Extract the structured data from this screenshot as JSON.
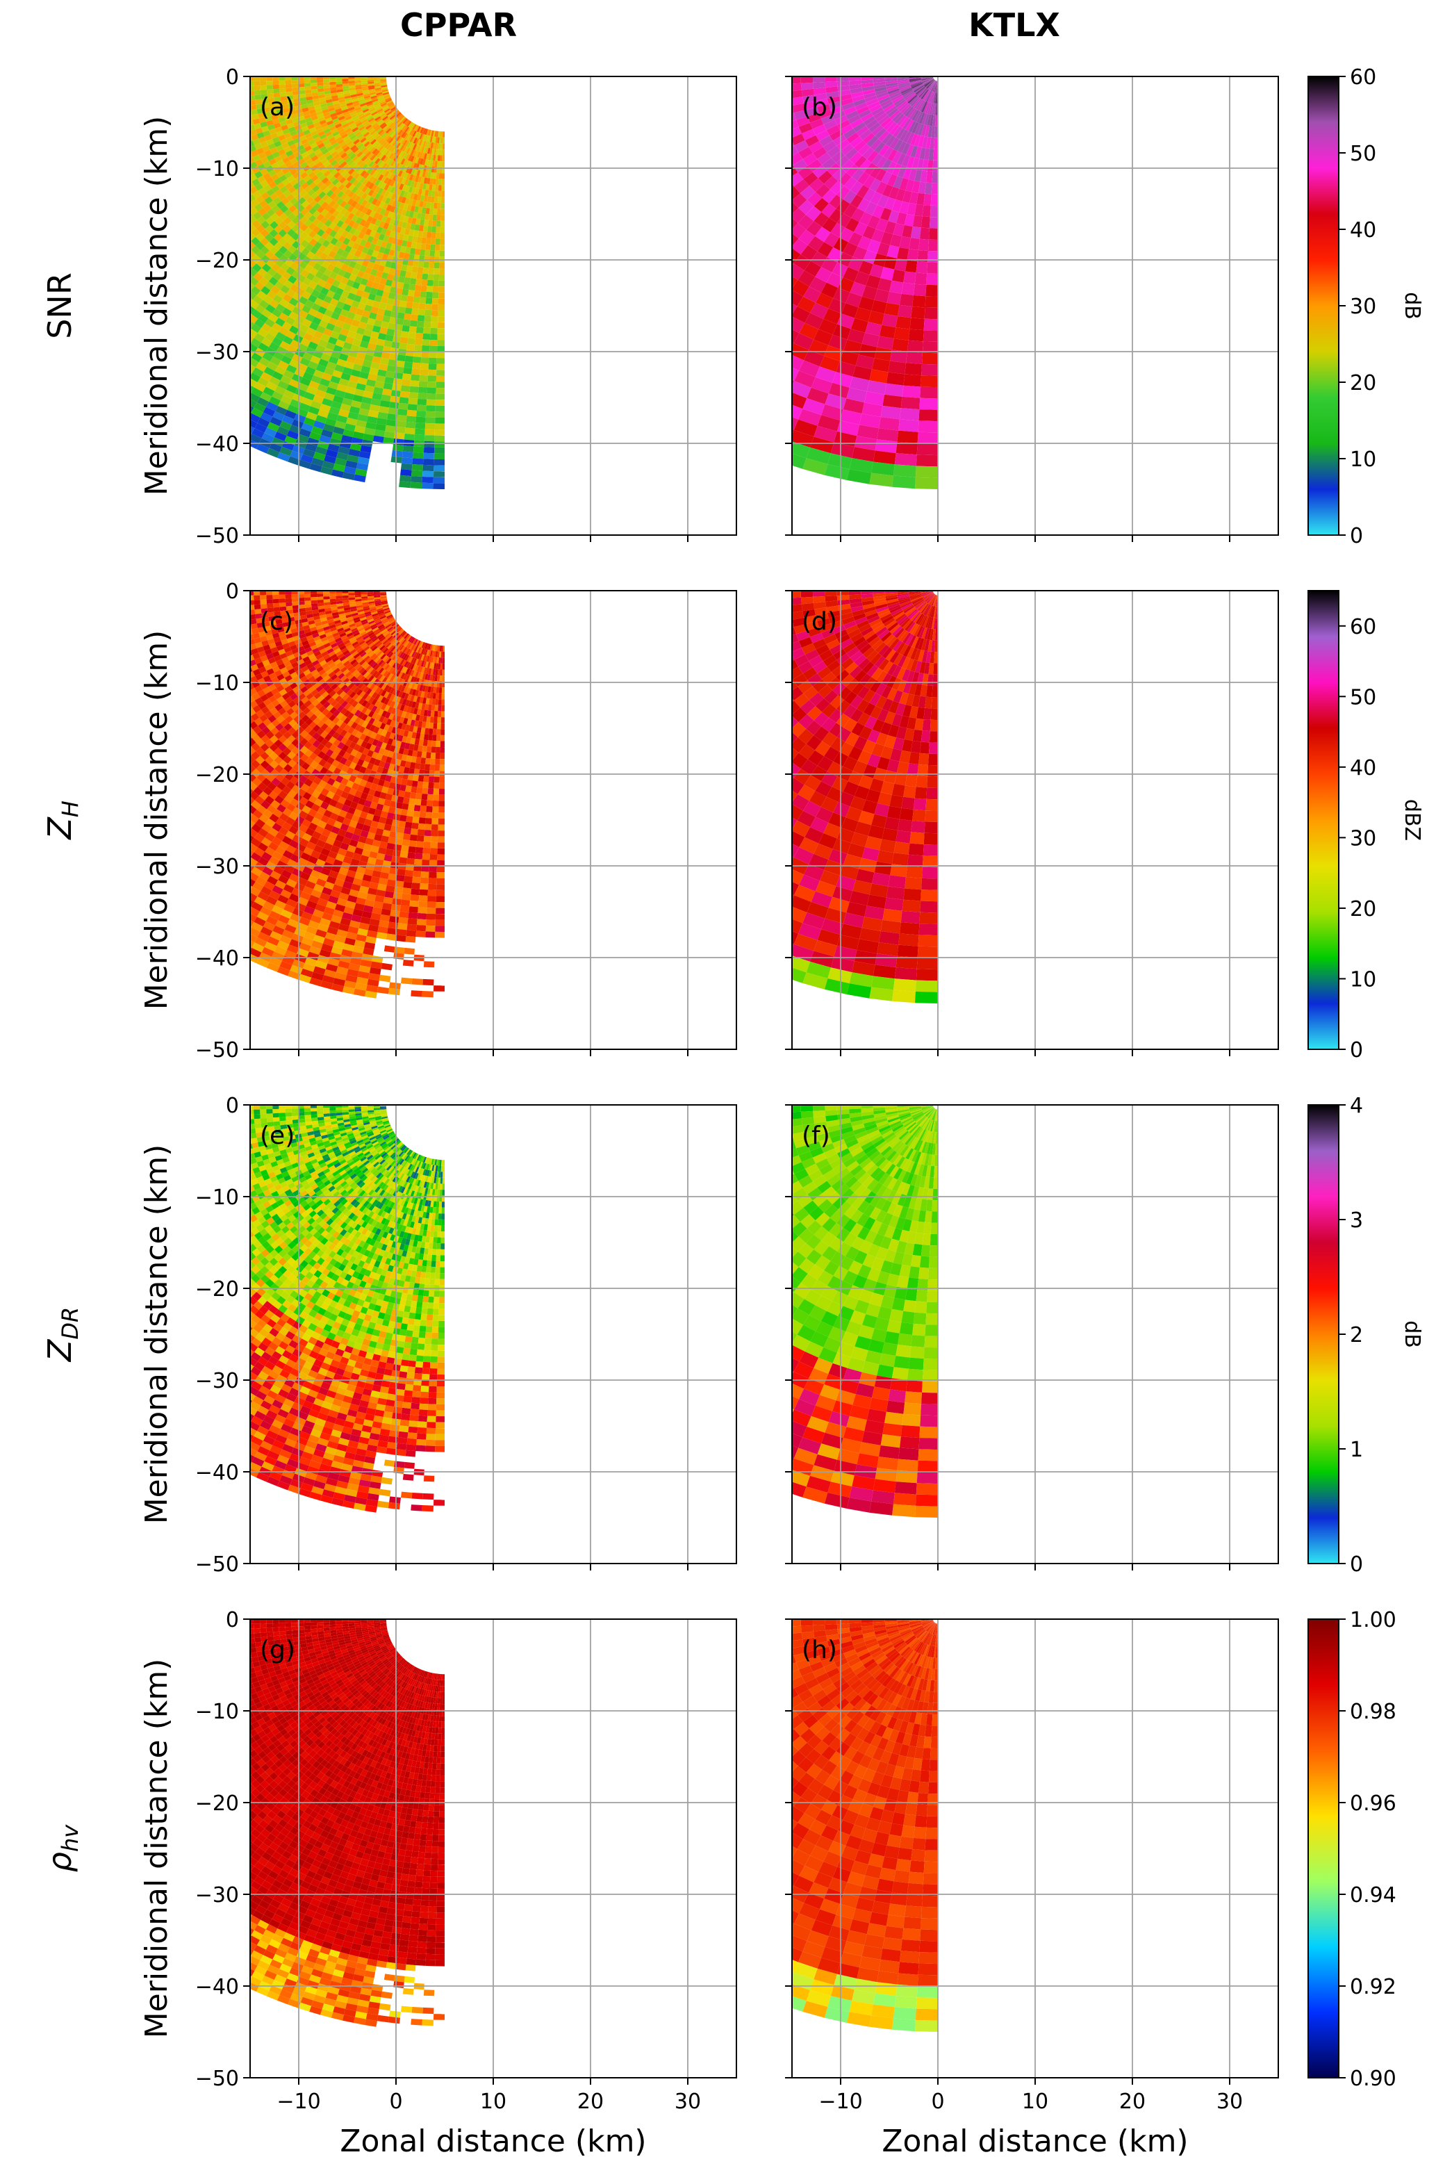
{
  "column_titles": [
    "CPPAR",
    "KTLX"
  ],
  "row_labels": [
    "SNR",
    "Z_H",
    "Z_DR",
    "ρ_hv"
  ],
  "chart_data": [
    {
      "type": "heatmap",
      "panel": "(a)",
      "radar": "CPPAR",
      "variable": "SNR",
      "units": "dB",
      "xlabel": "",
      "ylabel": "Meridional distance (km)",
      "xlim": [
        -15,
        35
      ],
      "ylim": [
        -50,
        0
      ],
      "xticks": [
        -10,
        0,
        10,
        20,
        30
      ],
      "yticks": [
        0,
        -10,
        -20,
        -30,
        -40,
        -50
      ],
      "sector_deg": [
        135,
        270
      ],
      "vmin": 0,
      "vmax": 60,
      "pattern": "yellow-green near radar, blue/cyan at far east and south edges",
      "grid": true
    },
    {
      "type": "heatmap",
      "panel": "(b)",
      "radar": "KTLX",
      "variable": "SNR",
      "units": "dB",
      "xlabel": "",
      "ylabel": "",
      "xlim": [
        -15,
        35
      ],
      "ylim": [
        -50,
        0
      ],
      "xticks": [
        -10,
        0,
        10,
        20,
        30
      ],
      "yticks": [
        0,
        -10,
        -20,
        -30,
        -40,
        -50
      ],
      "sector_deg": [
        135,
        270
      ],
      "vmin": 0,
      "vmax": 60,
      "colorbar_ticks": [
        0,
        10,
        20,
        30,
        40,
        50,
        60
      ],
      "colorbar_label": "dB",
      "pattern": "magenta/purple to red, black at north and west edges, yellow-green at south-west edge",
      "grid": true
    },
    {
      "type": "heatmap",
      "panel": "(c)",
      "radar": "CPPAR",
      "variable": "Z_H",
      "units": "dBZ",
      "xlabel": "",
      "ylabel": "Meridional distance (km)",
      "xlim": [
        -15,
        35
      ],
      "ylim": [
        -50,
        0
      ],
      "xticks": [
        -10,
        0,
        10,
        20,
        30
      ],
      "yticks": [
        0,
        -10,
        -20,
        -30,
        -40,
        -50
      ],
      "sector_deg": [
        135,
        270
      ],
      "vmin": 0,
      "vmax": 65,
      "pattern": "orange-red with gaps in the east",
      "grid": true
    },
    {
      "type": "heatmap",
      "panel": "(d)",
      "radar": "KTLX",
      "variable": "Z_H",
      "units": "dBZ",
      "xlabel": "",
      "ylabel": "",
      "xlim": [
        -15,
        35
      ],
      "ylim": [
        -50,
        0
      ],
      "xticks": [
        -10,
        0,
        10,
        20,
        30
      ],
      "yticks": [
        0,
        -10,
        -20,
        -30,
        -40,
        -50
      ],
      "sector_deg": [
        135,
        270
      ],
      "vmin": 0,
      "vmax": 65,
      "colorbar_ticks": [
        0,
        10,
        20,
        30,
        40,
        50,
        60
      ],
      "colorbar_label": "dBZ",
      "pattern": "orange-red with yellow patches, green/blue at south-west edge",
      "grid": true
    },
    {
      "type": "heatmap",
      "panel": "(e)",
      "radar": "CPPAR",
      "variable": "Z_DR",
      "units": "dB",
      "xlabel": "",
      "ylabel": "Meridional distance (km)",
      "xlim": [
        -15,
        35
      ],
      "ylim": [
        -50,
        0
      ],
      "xticks": [
        -10,
        0,
        10,
        20,
        30
      ],
      "yticks": [
        0,
        -10,
        -20,
        -30,
        -40,
        -50
      ],
      "sector_deg": [
        135,
        270
      ],
      "vmin": 0,
      "vmax": 4,
      "pattern": "blue-green, mixed colors to the south-west",
      "grid": true
    },
    {
      "type": "heatmap",
      "panel": "(f)",
      "radar": "KTLX",
      "variable": "Z_DR",
      "units": "dB",
      "xlabel": "",
      "ylabel": "",
      "xlim": [
        -15,
        35
      ],
      "ylim": [
        -50,
        0
      ],
      "xticks": [
        -10,
        0,
        10,
        20,
        30
      ],
      "yticks": [
        0,
        -10,
        -20,
        -30,
        -40,
        -50
      ],
      "sector_deg": [
        135,
        270
      ],
      "vmin": 0,
      "vmax": 4,
      "colorbar_ticks": [
        0,
        1,
        2,
        3,
        4
      ],
      "colorbar_label": "dB",
      "pattern": "green near radar, blue/cyan east, yellow-red south-west",
      "grid": true
    },
    {
      "type": "heatmap",
      "panel": "(g)",
      "radar": "CPPAR",
      "variable": "ρ_hv",
      "units": "",
      "xlabel": "Zonal distance (km)",
      "ylabel": "Meridional distance (km)",
      "xlim": [
        -15,
        35
      ],
      "ylim": [
        -50,
        0
      ],
      "xticks": [
        -10,
        0,
        10,
        20,
        30
      ],
      "yticks": [
        0,
        -10,
        -20,
        -30,
        -40,
        -50
      ],
      "sector_deg": [
        135,
        270
      ],
      "vmin": 0.9,
      "vmax": 1.0,
      "pattern": "dark red, lighter at far south-west",
      "grid": true
    },
    {
      "type": "heatmap",
      "panel": "(h)",
      "radar": "KTLX",
      "variable": "ρ_hv",
      "units": "",
      "xlabel": "Zonal distance (km)",
      "ylabel": "",
      "xlim": [
        -15,
        35
      ],
      "ylim": [
        -50,
        0
      ],
      "xticks": [
        -10,
        0,
        10,
        20,
        30
      ],
      "yticks": [
        0,
        -10,
        -20,
        -30,
        -40,
        -50
      ],
      "sector_deg": [
        135,
        270
      ],
      "vmin": 0.9,
      "vmax": 1.0,
      "colorbar_ticks": [
        0.9,
        0.92,
        0.94,
        0.96,
        0.98,
        1.0
      ],
      "colorbar_label": "",
      "pattern": "red-orange, yellow-cyan at south-west edge",
      "grid": true
    }
  ],
  "colors": {
    "snr": [
      "#2fe6f0",
      "#0b2ad8",
      "#18b818",
      "#33cc33",
      "#d4d000",
      "#ff9a00",
      "#ff2000",
      "#d80010",
      "#ff20d8",
      "#a050b0",
      "#000000"
    ],
    "zh": [
      "#2fe6f0",
      "#0b2ad8",
      "#00cc00",
      "#a8e000",
      "#e8e000",
      "#ff9c00",
      "#ff4000",
      "#d00000",
      "#ff10c0",
      "#a060d0",
      "#000000"
    ],
    "zdr": [
      "#2fe6f0",
      "#0b2ad8",
      "#00cc00",
      "#a8e000",
      "#e8e000",
      "#ff8000",
      "#ff1000",
      "#d00030",
      "#ff20c0",
      "#9a60c8",
      "#000000"
    ],
    "rho": [
      "#000050",
      "#0030ff",
      "#00d0ff",
      "#a0ff60",
      "#ffe000",
      "#ff6000",
      "#e00000",
      "#800000"
    ]
  }
}
